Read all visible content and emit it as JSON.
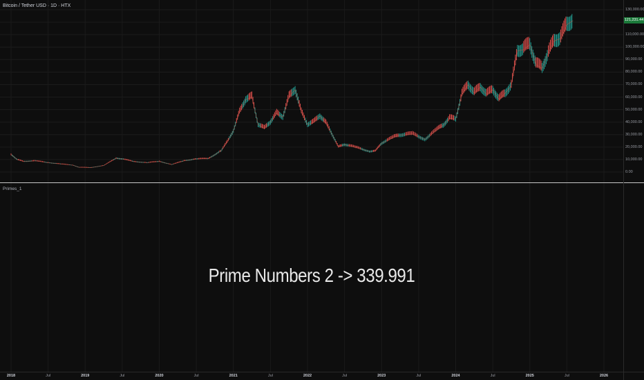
{
  "symbol": "Bitcoin / Tether USD · 1D · HTX",
  "indicator": {
    "name": "Primes_1",
    "text": "Prime Numbers 2 -> 339.991"
  },
  "last_price": "121,231.44",
  "colors": {
    "background": "#0e0e0e",
    "up": "#26a69a",
    "down": "#ef5350",
    "last_price_tag": "#1b7a3a"
  },
  "chart_data": {
    "type": "line",
    "title": "Bitcoin / Tether USD · 1D · HTX",
    "xlabel": "",
    "ylabel": "",
    "ylim": [
      -5000,
      135000
    ],
    "grid": true,
    "x_tick_labels": [
      "2018",
      "Jul",
      "2019",
      "Jul",
      "2020",
      "Jul",
      "2021",
      "Jul",
      "2022",
      "Jul",
      "2023",
      "Jul",
      "2024",
      "Jul",
      "2025",
      "Jul",
      "2026"
    ],
    "y_tick_labels": [
      "130,000.00",
      "120,000.00",
      "110,000.00",
      "100,000.00",
      "90,000.00",
      "80,000.00",
      "70,000.00",
      "60,000.00",
      "50,000.00",
      "40,000.00",
      "30,000.00",
      "20,000.00",
      "10,000.00",
      "0.00"
    ],
    "series": [
      {
        "x": [
          "2018-01",
          "2018-02",
          "2018-03",
          "2018-05",
          "2018-07",
          "2018-09",
          "2018-11",
          "2018-12",
          "2019-02",
          "2019-04",
          "2019-06",
          "2019-07",
          "2019-09",
          "2019-11",
          "2020-01",
          "2020-03",
          "2020-05",
          "2020-07",
          "2020-09",
          "2020-11",
          "2020-12",
          "2021-01",
          "2021-02",
          "2021-03",
          "2021-04",
          "2021-05",
          "2021-06",
          "2021-07",
          "2021-08",
          "2021-09",
          "2021-10",
          "2021-11",
          "2021-12",
          "2022-01",
          "2022-02",
          "2022-03",
          "2022-04",
          "2022-05",
          "2022-06",
          "2022-07",
          "2022-09",
          "2022-11",
          "2022-12",
          "2023-01",
          "2023-03",
          "2023-04",
          "2023-06",
          "2023-08",
          "2023-10",
          "2023-11",
          "2023-12",
          "2024-01",
          "2024-02",
          "2024-03",
          "2024-04",
          "2024-05",
          "2024-06",
          "2024-07",
          "2024-08",
          "2024-09",
          "2024-10",
          "2024-11",
          "2024-12",
          "2025-01",
          "2025-02",
          "2025-03",
          "2025-04",
          "2025-05",
          "2025-06",
          "2025-07",
          "2025-08"
        ],
        "values": [
          14000,
          10000,
          8500,
          9000,
          7500,
          6500,
          5500,
          3800,
          3600,
          5200,
          11000,
          10500,
          8300,
          7500,
          8500,
          6000,
          9000,
          10500,
          10800,
          17000,
          24000,
          33000,
          48000,
          58000,
          60000,
          38000,
          35000,
          40000,
          47000,
          44000,
          60000,
          66000,
          48000,
          38000,
          40000,
          45000,
          39000,
          30000,
          20000,
          22000,
          19500,
          16500,
          16800,
          23000,
          28000,
          29500,
          30500,
          26000,
          34000,
          37500,
          43000,
          42500,
          62000,
          70000,
          63000,
          68000,
          62000,
          66000,
          58000,
          63000,
          69000,
          97000,
          98000,
          102000,
          86000,
          83000,
          95000,
          105000,
          107000,
          118000,
          121231.44
        ]
      }
    ]
  }
}
